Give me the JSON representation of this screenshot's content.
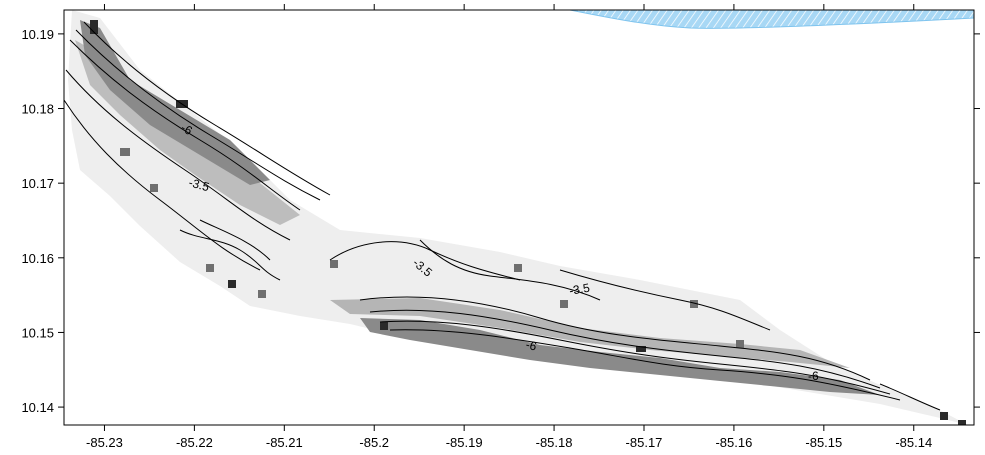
{
  "map": {
    "type": "bathymetry-contour-map",
    "x_ticks": [
      "-85.23",
      "-85.22",
      "-85.21",
      "-85.2",
      "-85.19",
      "-85.18",
      "-85.17",
      "-85.16",
      "-85.15",
      "-85.14"
    ],
    "y_ticks": [
      "10.19",
      "10.18",
      "10.17",
      "10.16",
      "10.15",
      "10.14"
    ],
    "xlim": [
      -85.2345,
      -85.1333
    ],
    "ylim": [
      10.1376,
      10.1932
    ],
    "contour_labels": [
      "-6",
      "-3.5",
      "-3.5",
      "-3.5",
      "-6",
      "-6"
    ],
    "colors": {
      "shallow": "#e8e8e8",
      "deep": "#1a1a1a",
      "contour": "#000000",
      "water_overlay": "#9fd3f2"
    }
  }
}
